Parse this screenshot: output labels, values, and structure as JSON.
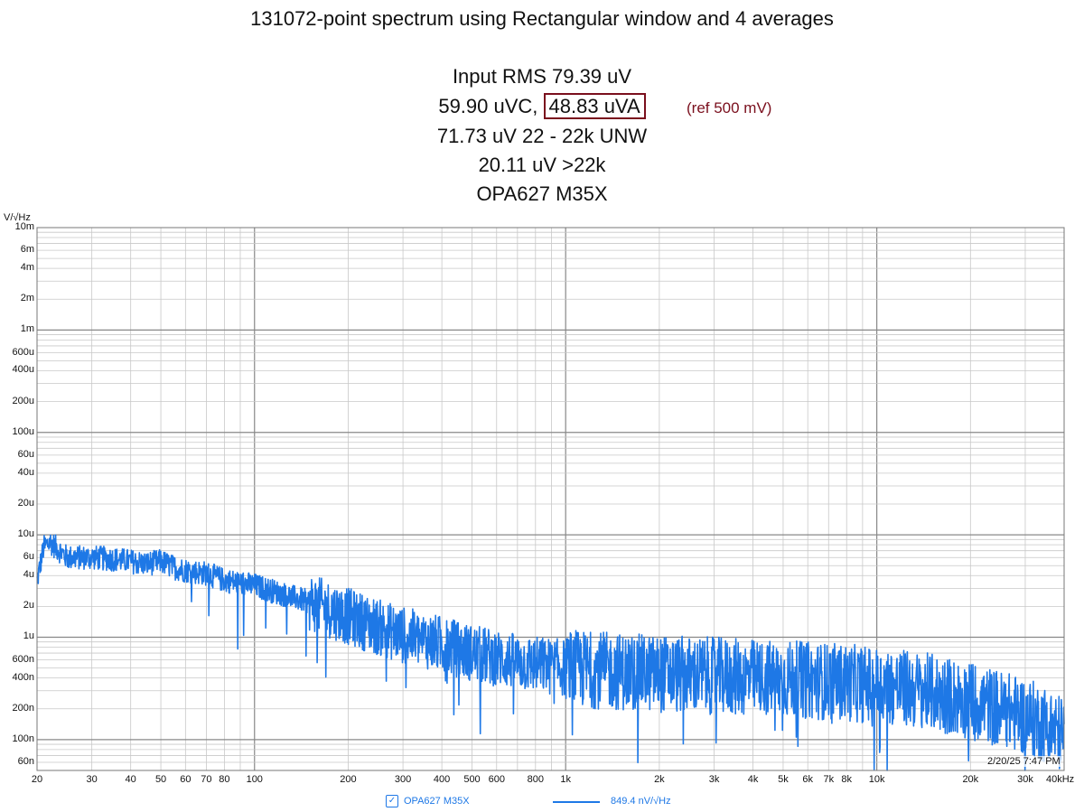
{
  "title": "131072-point spectrum using Rectangular window and 4 averages",
  "stats": {
    "input_rms": "Input RMS 79.39 uV",
    "uvc": "59.90 uVC,",
    "uva": "48.83 uVA",
    "ref": "(ref 500 mV)",
    "unw": "71.73 uV 22 - 22k UNW",
    "above22k": "20.11 uV >22k",
    "device": "OPA627 M35X"
  },
  "y_unit": "V/√Hz",
  "legend": {
    "checkbox": "✓",
    "name": "OPA627 M35X",
    "value": "849.4 nV/√Hz"
  },
  "timestamp": "2/20/25 7:47 PM",
  "colors": {
    "trace": "#1e78e6",
    "highlight": "#7a0f1d",
    "grid": "#c8c8c8",
    "grid_major": "#888888"
  },
  "chart_data": {
    "type": "line",
    "title": "131072-point spectrum using Rectangular window and 4 averages",
    "xlabel": "",
    "ylabel": "V/√Hz",
    "x_scale": "log",
    "y_scale": "log",
    "xlim": [
      20,
      40000
    ],
    "ylim": [
      5e-08,
      0.01
    ],
    "x_tick_labels": [
      {
        "v": 20,
        "t": "20"
      },
      {
        "v": 30,
        "t": "30"
      },
      {
        "v": 40,
        "t": "40"
      },
      {
        "v": 50,
        "t": "50"
      },
      {
        "v": 60,
        "t": "60"
      },
      {
        "v": 70,
        "t": "70"
      },
      {
        "v": 80,
        "t": "80"
      },
      {
        "v": 100,
        "t": "100"
      },
      {
        "v": 200,
        "t": "200"
      },
      {
        "v": 300,
        "t": "300"
      },
      {
        "v": 400,
        "t": "400"
      },
      {
        "v": 500,
        "t": "500"
      },
      {
        "v": 600,
        "t": "600"
      },
      {
        "v": 800,
        "t": "800"
      },
      {
        "v": 1000,
        "t": "1k"
      },
      {
        "v": 2000,
        "t": "2k"
      },
      {
        "v": 3000,
        "t": "3k"
      },
      {
        "v": 4000,
        "t": "4k"
      },
      {
        "v": 5000,
        "t": "5k"
      },
      {
        "v": 6000,
        "t": "6k"
      },
      {
        "v": 7000,
        "t": "7k"
      },
      {
        "v": 8000,
        "t": "8k"
      },
      {
        "v": 10000,
        "t": "10k"
      },
      {
        "v": 20000,
        "t": "20k"
      },
      {
        "v": 30000,
        "t": "30k"
      },
      {
        "v": 40000,
        "t": "40kHz"
      }
    ],
    "y_tick_labels": [
      {
        "v": 0.01,
        "t": "10m"
      },
      {
        "v": 0.006,
        "t": "6m"
      },
      {
        "v": 0.004,
        "t": "4m"
      },
      {
        "v": 0.002,
        "t": "2m"
      },
      {
        "v": 0.001,
        "t": "1m"
      },
      {
        "v": 0.0006,
        "t": "600u"
      },
      {
        "v": 0.0004,
        "t": "400u"
      },
      {
        "v": 0.0002,
        "t": "200u"
      },
      {
        "v": 0.0001,
        "t": "100u"
      },
      {
        "v": 6e-05,
        "t": "60u"
      },
      {
        "v": 4e-05,
        "t": "40u"
      },
      {
        "v": 2e-05,
        "t": "20u"
      },
      {
        "v": 1e-05,
        "t": "10u"
      },
      {
        "v": 6e-06,
        "t": "6u"
      },
      {
        "v": 4e-06,
        "t": "4u"
      },
      {
        "v": 2e-06,
        "t": "2u"
      },
      {
        "v": 1e-06,
        "t": "1u"
      },
      {
        "v": 6e-07,
        "t": "600n"
      },
      {
        "v": 4e-07,
        "t": "400n"
      },
      {
        "v": 2e-07,
        "t": "200n"
      },
      {
        "v": 1e-07,
        "t": "100n"
      },
      {
        "v": 6e-08,
        "t": "60n"
      }
    ],
    "grid": true,
    "series": [
      {
        "name": "OPA627 M35X",
        "x": [
          20,
          21,
          22,
          25,
          30,
          35,
          40,
          45,
          50,
          55,
          60,
          70,
          80,
          100,
          120,
          150,
          200,
          250,
          300,
          400,
          500,
          700,
          1000,
          1500,
          2000,
          3000,
          4000,
          5000,
          6000,
          7000,
          8000,
          10000,
          12000,
          15000,
          18000,
          20000,
          25000,
          30000,
          35000,
          40000
        ],
        "values": [
          3.5e-06,
          7.5e-06,
          8.5e-06,
          6e-06,
          6e-06,
          5.8e-06,
          5.5e-06,
          5.2e-06,
          5.5e-06,
          4.8e-06,
          4.5e-06,
          4.2e-06,
          3.6e-06,
          3.2e-06,
          2.7e-06,
          2.2e-06,
          1.6e-06,
          1.25e-06,
          1.05e-06,
          8.5e-07,
          7e-07,
          5.7e-07,
          5e-07,
          4.6e-07,
          4.4e-07,
          4.2e-07,
          4e-07,
          3.9e-07,
          3.8e-07,
          3.7e-07,
          3.6e-07,
          3.4e-07,
          3.2e-07,
          2.9e-07,
          2.6e-07,
          2.4e-07,
          2e-07,
          1.7e-07,
          1.4e-07,
          1.1e-07
        ]
      }
    ],
    "legend_position": "bottom"
  }
}
